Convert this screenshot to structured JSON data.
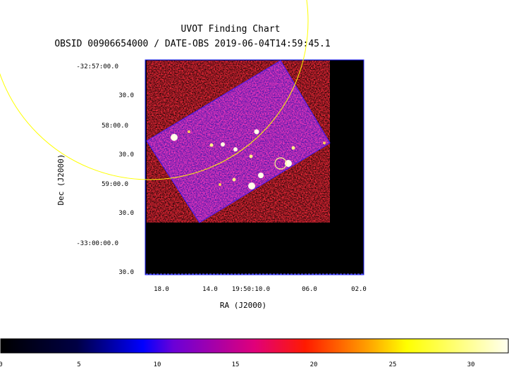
{
  "title": "UVOT Finding Chart",
  "subtitle": "OBSID 00906654000 / DATE-OBS 2019-06-04T14:59:45.1",
  "x_axis": {
    "label": "RA (J2000)",
    "ticks": [
      "18.0",
      "14.0",
      "19:50:10.0",
      "06.0",
      "02.0"
    ]
  },
  "y_axis": {
    "label": "Dec (J2000)",
    "ticks": [
      "-32:57:00.0",
      "30.0",
      "58:00.0",
      "30.0",
      "59:00.0",
      "30.0",
      "-33:00:00.0",
      "30.0"
    ]
  },
  "colorbar": {
    "ticks": [
      "0",
      "5",
      "10",
      "15",
      "20",
      "25",
      "30"
    ],
    "stops": [
      "#000000",
      "#0000ff",
      "#ff0000",
      "#ffff00",
      "#ffffff"
    ]
  },
  "overlays": {
    "large_circle_color": "#ffff00",
    "small_circle_color": "#ffff00"
  }
}
